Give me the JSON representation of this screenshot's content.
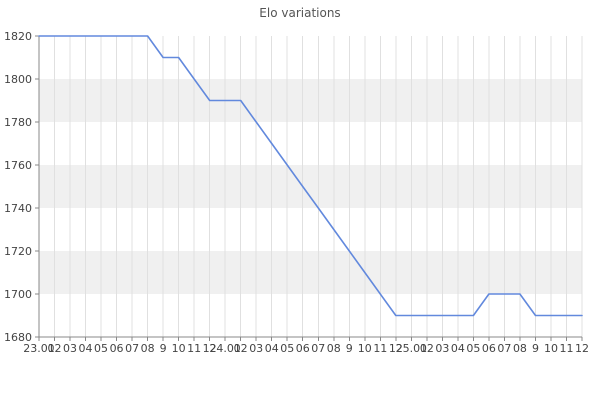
{
  "window": {
    "title": "Elo variations"
  },
  "chart_data": {
    "type": "line",
    "title": "Elo variations",
    "x_categories": [
      "23.01",
      "02",
      "03",
      "04",
      "05",
      "06",
      "07",
      "08",
      "9",
      "10",
      "11",
      "12",
      "24.01",
      "02",
      "03",
      "04",
      "05",
      "06",
      "07",
      "08",
      "9",
      "10",
      "11",
      "12",
      "25.01",
      "02",
      "03",
      "04",
      "05",
      "06",
      "07",
      "08",
      "9",
      "10",
      "11",
      "12"
    ],
    "series": [
      {
        "name": "Elo",
        "values": [
          1820,
          1820,
          1820,
          1820,
          1820,
          1820,
          1820,
          1820,
          1810,
          1810,
          1800,
          1790,
          1790,
          1790,
          1780,
          1770,
          1760,
          1750,
          1740,
          1730,
          1720,
          1710,
          1700,
          1690,
          1690,
          1690,
          1690,
          1690,
          1690,
          1700,
          1700,
          1700,
          1690,
          1690,
          1690,
          1690
        ]
      }
    ],
    "ylim": [
      1680,
      1820
    ],
    "yticks": [
      1680,
      1700,
      1720,
      1740,
      1760,
      1780,
      1800,
      1820
    ],
    "legend": "none",
    "grid": "vertical",
    "colors": {
      "line": "#6289dd",
      "band": "#f0f0f0",
      "gridline": "#e0e0e0",
      "axis": "#888888",
      "tick_label": "#444444",
      "title": "#555555",
      "background": "#ffffff"
    }
  }
}
